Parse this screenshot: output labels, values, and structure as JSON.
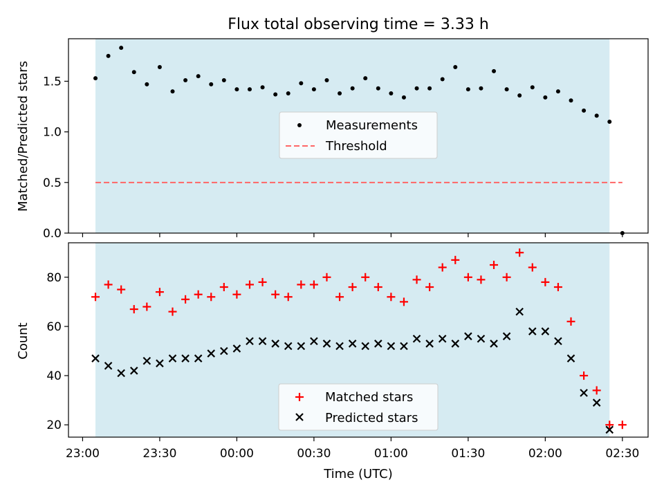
{
  "title": "Flux total observing time = 3.33 h",
  "colors": {
    "shade": "#add8e6",
    "threshold": "#ff6666",
    "matched": "#ff0000",
    "predicted": "#000000",
    "measurement": "#000000"
  },
  "chart_data": [
    {
      "type": "scatter",
      "ylabel": "Matched/Predicted stars",
      "ylim": [
        0.0,
        1.92
      ],
      "yticks": [
        0.0,
        0.5,
        1.0,
        1.5
      ],
      "ytick_labels": [
        "0.0",
        "0.5",
        "1.0",
        "1.5"
      ],
      "x_minutes_since_2300": [
        5,
        10,
        15,
        20,
        25,
        30,
        35,
        40,
        45,
        50,
        55,
        60,
        65,
        70,
        75,
        80,
        85,
        90,
        95,
        100,
        105,
        110,
        115,
        120,
        125,
        130,
        135,
        140,
        145,
        150,
        155,
        160,
        165,
        170,
        175,
        180,
        185,
        190,
        195,
        200,
        205,
        210
      ],
      "series": [
        {
          "name": "Measurements",
          "values": [
            1.53,
            1.75,
            1.83,
            1.59,
            1.47,
            1.64,
            1.4,
            1.51,
            1.55,
            1.47,
            1.51,
            1.42,
            1.42,
            1.44,
            1.37,
            1.38,
            1.48,
            1.42,
            1.51,
            1.38,
            1.43,
            1.53,
            1.43,
            1.38,
            1.34,
            1.43,
            1.43,
            1.52,
            1.64,
            1.42,
            1.43,
            1.6,
            1.42,
            1.36,
            1.44,
            1.34,
            1.4,
            1.31,
            1.21,
            1.16,
            1.1,
            0.0
          ]
        },
        {
          "name": "Threshold",
          "line": [
            [
              5,
              0.5
            ],
            [
              210,
              0.5
            ]
          ]
        }
      ],
      "legend": "center",
      "shaded_x_range": [
        5,
        205
      ]
    },
    {
      "type": "scatter",
      "ylabel": "Count",
      "xlabel": "Time (UTC)",
      "ylim": [
        15,
        94
      ],
      "yticks": [
        20,
        40,
        60,
        80
      ],
      "ytick_labels": [
        "20",
        "40",
        "60",
        "80"
      ],
      "xticks": [
        0,
        30,
        60,
        90,
        120,
        150,
        180,
        210
      ],
      "xtick_labels": [
        "23:00",
        "23:30",
        "00:00",
        "00:30",
        "01:00",
        "01:30",
        "02:00",
        "02:30"
      ],
      "xlim": [
        -5.5,
        220
      ],
      "x_minutes_since_2300": [
        5,
        10,
        15,
        20,
        25,
        30,
        35,
        40,
        45,
        50,
        55,
        60,
        65,
        70,
        75,
        80,
        85,
        90,
        95,
        100,
        105,
        110,
        115,
        120,
        125,
        130,
        135,
        140,
        145,
        150,
        155,
        160,
        165,
        170,
        175,
        180,
        185,
        190,
        195,
        200,
        205,
        210
      ],
      "series": [
        {
          "name": "Matched stars",
          "marker": "plus",
          "values": [
            72,
            77,
            75,
            67,
            68,
            74,
            66,
            71,
            73,
            72,
            76,
            73,
            77,
            78,
            73,
            72,
            77,
            77,
            80,
            72,
            76,
            80,
            76,
            72,
            70,
            79,
            76,
            84,
            87,
            80,
            79,
            85,
            80,
            90,
            84,
            78,
            76,
            62,
            40,
            34,
            20,
            20
          ]
        },
        {
          "name": "Predicted stars",
          "marker": "x",
          "values": [
            47,
            44,
            41,
            42,
            46,
            45,
            47,
            47,
            47,
            49,
            50,
            51,
            54,
            54,
            53,
            52,
            52,
            54,
            53,
            52,
            53,
            52,
            53,
            52,
            52,
            55,
            53,
            55,
            53,
            56,
            55,
            53,
            56,
            66,
            58,
            58,
            54,
            47,
            33,
            29,
            18,
            null
          ]
        }
      ],
      "legend": "bottom-center",
      "shaded_x_range": [
        5,
        205
      ]
    }
  ]
}
